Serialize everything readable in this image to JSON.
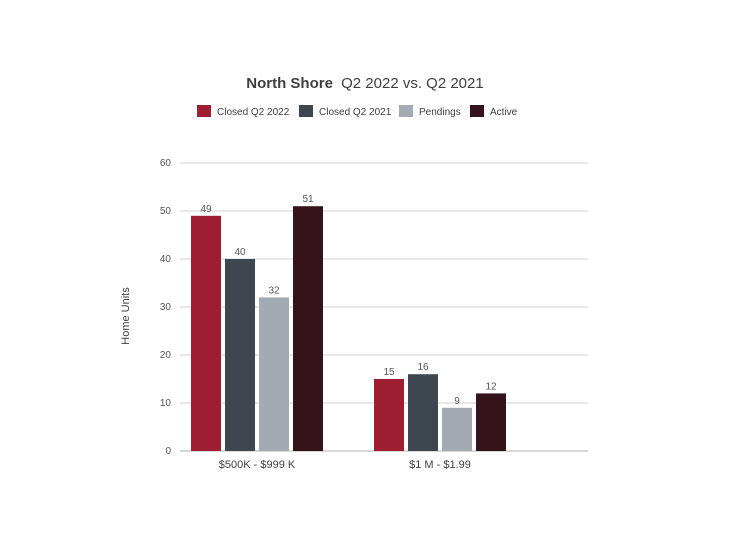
{
  "chart_data": {
    "type": "bar",
    "title_bold": "North Shore",
    "title_rest": "Q2 2022 vs. Q2 2021",
    "ylabel": "Home Units",
    "xlabel": "",
    "categories": [
      "$500K - $999 K",
      "$1 M - $1.99"
    ],
    "series": [
      {
        "name": "Closed Q2 2022",
        "color": "#9e1f31",
        "values": [
          49,
          15
        ]
      },
      {
        "name": "Closed Q2 2021",
        "color": "#3e474f",
        "values": [
          40,
          16
        ]
      },
      {
        "name": "Pendings",
        "color": "#a3aab1",
        "values": [
          32,
          9
        ]
      },
      {
        "name": "Active",
        "color": "#34131b",
        "values": [
          51,
          12
        ]
      }
    ],
    "ylim": [
      0,
      60
    ],
    "yticks": [
      "0",
      "10",
      "20",
      "30",
      "40",
      "50",
      "60"
    ],
    "grid": true,
    "legend_position": "top"
  }
}
